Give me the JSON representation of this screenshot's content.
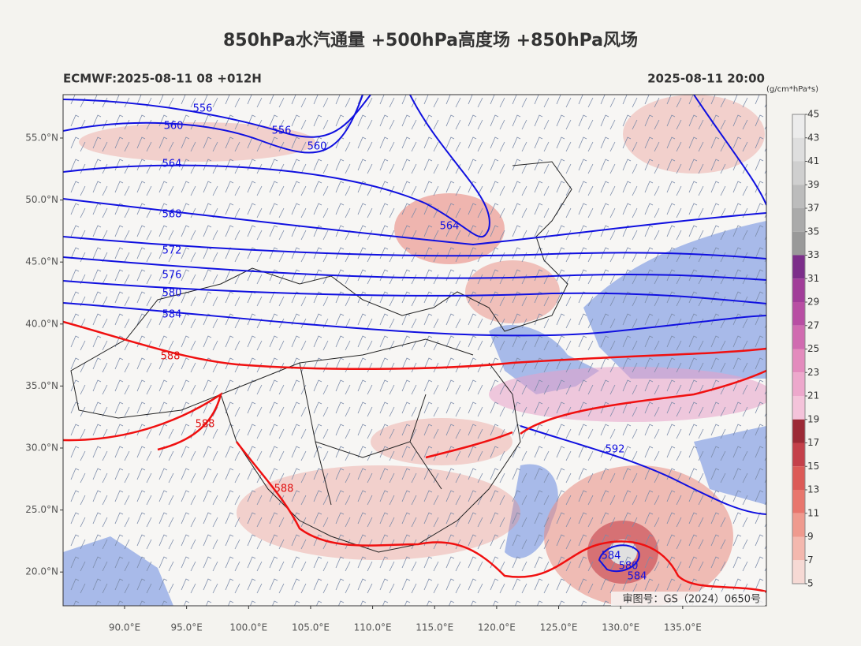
{
  "title": "850hPa水汽通量 +500hPa高度场 +850hPa风场",
  "model_run": "ECMWF:2025-08-11 08 +012H",
  "valid_time": "2025-08-11 20:00",
  "colorbar": {
    "unit": "(g/cm*hPa*s)",
    "ticks": [
      45,
      43,
      41,
      39,
      37,
      35,
      33,
      31,
      29,
      27,
      25,
      23,
      21,
      19,
      17,
      15,
      13,
      11,
      9,
      7,
      5
    ],
    "colors": [
      "#ececec",
      "#dedede",
      "#cfcfcf",
      "#bcbcbc",
      "#aaaaaa",
      "#999999",
      "#7c2e8a",
      "#a13d99",
      "#b84ea3",
      "#d06bb0",
      "#e38bbd",
      "#eda8cc",
      "#f4c3da",
      "#9c2a36",
      "#c4404a",
      "#dc5a57",
      "#e8766d",
      "#ef9a8e",
      "#f4b8ae",
      "#f6d9d4"
    ]
  },
  "lat_labels": [
    "55.0°N",
    "50.0°N",
    "45.0°N",
    "40.0°N",
    "35.0°N",
    "30.0°N",
    "25.0°N",
    "20.0°N"
  ],
  "lon_labels": [
    "90.0°E",
    "95.0°E",
    "100.0°E",
    "105.0°E",
    "110.0°E",
    "115.0°E",
    "120.0°E",
    "125.0°E",
    "130.0°E",
    "135.0°E"
  ],
  "contour_labels": [
    "556",
    "556",
    "560",
    "560",
    "564",
    "564",
    "568",
    "572",
    "576",
    "580",
    "584",
    "588",
    "588",
    "588",
    "592",
    "584",
    "580",
    "584"
  ],
  "map_note": "审图号：GS（2024）0650号"
}
